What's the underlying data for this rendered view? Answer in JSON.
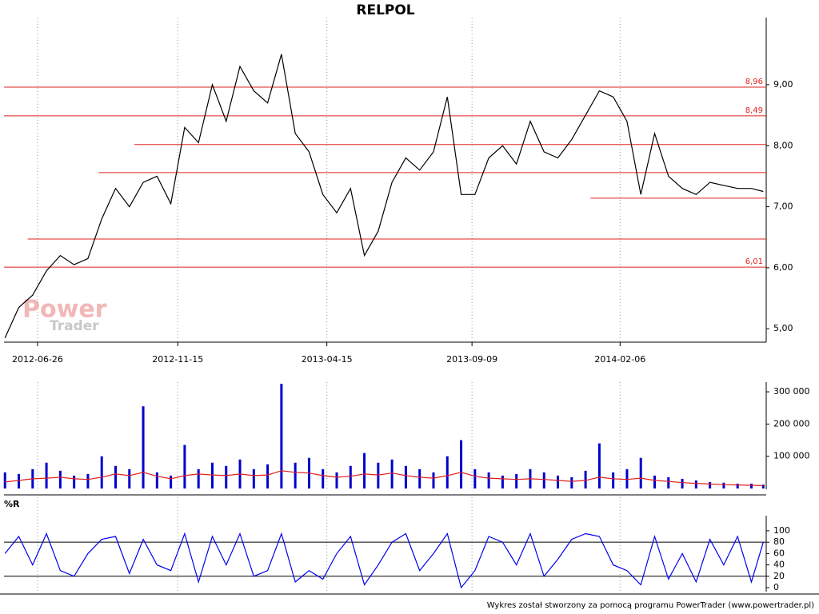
{
  "watermark": [
    "Power",
    "Trader"
  ],
  "footer": "Wykres został stworzony za pomocą programu PowerTrader (www.powertrader.pl)",
  "chart_data": [
    {
      "type": "line",
      "title": "RELPOL",
      "color": "#000000",
      "x": [
        "2012-05-24",
        "2012-06-07",
        "2012-06-21",
        "2012-07-05",
        "2012-07-19",
        "2012-08-02",
        "2012-08-16",
        "2012-08-30",
        "2012-09-13",
        "2012-09-27",
        "2012-10-11",
        "2012-10-25",
        "2012-11-08",
        "2012-11-22",
        "2012-12-06",
        "2012-12-20",
        "2013-01-03",
        "2013-01-17",
        "2013-01-31",
        "2013-02-14",
        "2013-02-28",
        "2013-03-14",
        "2013-03-28",
        "2013-04-11",
        "2013-04-25",
        "2013-05-09",
        "2013-05-23",
        "2013-06-06",
        "2013-06-20",
        "2013-07-04",
        "2013-07-18",
        "2013-08-01",
        "2013-08-15",
        "2013-08-29",
        "2013-09-12",
        "2013-09-26",
        "2013-10-10",
        "2013-10-24",
        "2013-11-07",
        "2013-11-21",
        "2013-12-05",
        "2013-12-19",
        "2014-01-02",
        "2014-01-16",
        "2014-01-30",
        "2014-02-13",
        "2014-02-27",
        "2014-03-13",
        "2014-03-27",
        "2014-04-10",
        "2014-04-24",
        "2014-05-08",
        "2014-05-22",
        "2014-06-05",
        "2014-06-19",
        "2014-07-01"
      ],
      "values": [
        4.85,
        5.35,
        5.55,
        5.95,
        6.2,
        6.05,
        6.15,
        6.8,
        7.3,
        7.0,
        7.4,
        7.5,
        7.05,
        8.3,
        8.05,
        9.0,
        8.4,
        9.3,
        8.9,
        8.7,
        9.5,
        8.2,
        7.9,
        7.2,
        6.9,
        7.3,
        6.2,
        6.6,
        7.4,
        7.8,
        7.6,
        7.9,
        8.8,
        7.2,
        7.2,
        7.8,
        8.0,
        7.7,
        8.4,
        7.9,
        7.8,
        8.1,
        8.5,
        8.9,
        8.8,
        8.4,
        7.2,
        8.2,
        7.5,
        7.3,
        7.2,
        7.4,
        7.35,
        7.3,
        7.3,
        7.25
      ],
      "xlim": [
        "2012-05-23",
        "2014-07-04"
      ],
      "xticks": [
        "2012-06-26",
        "2012-11-15",
        "2013-04-15",
        "2013-09-09",
        "2014-02-06"
      ],
      "ylim": [
        4.78,
        10.1
      ],
      "yticks": [
        {
          "value": 5,
          "label": "5,00"
        },
        {
          "value": 6,
          "label": "6,00"
        },
        {
          "value": 7,
          "label": "7,00"
        },
        {
          "value": 8,
          "label": "8,00"
        },
        {
          "value": 9,
          "label": "9,00"
        }
      ],
      "hline_color": "#e02020",
      "hlines": [
        {
          "value": 8.96,
          "label": "8,96"
        },
        {
          "value": 8.49,
          "label": "8,49"
        },
        {
          "value": 8.02,
          "from": "2012-10-02"
        },
        {
          "value": 7.56,
          "from": "2012-08-27"
        },
        {
          "value": 7.14,
          "from": "2014-01-07"
        },
        {
          "value": 6.47,
          "from": "2012-06-16"
        },
        {
          "value": 6.01,
          "label": "6,01"
        }
      ]
    },
    {
      "type": "bar",
      "color": "#0000cc",
      "x": [
        "2012-05-24",
        "2012-06-07",
        "2012-06-21",
        "2012-07-05",
        "2012-07-19",
        "2012-08-02",
        "2012-08-16",
        "2012-08-30",
        "2012-09-13",
        "2012-09-27",
        "2012-10-11",
        "2012-10-25",
        "2012-11-08",
        "2012-11-22",
        "2012-12-06",
        "2012-12-20",
        "2013-01-03",
        "2013-01-17",
        "2013-01-31",
        "2013-02-14",
        "2013-02-28",
        "2013-03-14",
        "2013-03-28",
        "2013-04-11",
        "2013-04-25",
        "2013-05-09",
        "2013-05-23",
        "2013-06-06",
        "2013-06-20",
        "2013-07-04",
        "2013-07-18",
        "2013-08-01",
        "2013-08-15",
        "2013-08-29",
        "2013-09-12",
        "2013-09-26",
        "2013-10-10",
        "2013-10-24",
        "2013-11-07",
        "2013-11-21",
        "2013-12-05",
        "2013-12-19",
        "2014-01-02",
        "2014-01-16",
        "2014-01-30",
        "2014-02-13",
        "2014-02-27",
        "2014-03-13",
        "2014-03-27",
        "2014-04-10",
        "2014-04-24",
        "2014-05-08",
        "2014-05-22",
        "2014-06-05",
        "2014-06-19",
        "2014-07-01"
      ],
      "values": [
        50000,
        45000,
        60000,
        80000,
        55000,
        40000,
        45000,
        100000,
        70000,
        60000,
        255000,
        50000,
        40000,
        135000,
        60000,
        80000,
        70000,
        90000,
        60000,
        75000,
        325000,
        80000,
        95000,
        60000,
        50000,
        70000,
        110000,
        80000,
        90000,
        70000,
        60000,
        50000,
        100000,
        150000,
        60000,
        50000,
        40000,
        45000,
        60000,
        50000,
        40000,
        35000,
        55000,
        140000,
        50000,
        60000,
        95000,
        40000,
        35000,
        30000,
        25000,
        20000,
        18000,
        15000,
        15000,
        12000
      ],
      "ma_color": "#e02020",
      "ma": [
        20000,
        25000,
        30000,
        32000,
        35000,
        30000,
        28000,
        35000,
        45000,
        40000,
        50000,
        38000,
        30000,
        40000,
        45000,
        42000,
        40000,
        45000,
        40000,
        42000,
        55000,
        50000,
        48000,
        40000,
        35000,
        38000,
        45000,
        42000,
        48000,
        40000,
        35000,
        32000,
        40000,
        50000,
        38000,
        32000,
        30000,
        28000,
        30000,
        28000,
        25000,
        22000,
        25000,
        35000,
        30000,
        28000,
        32000,
        25000,
        22000,
        18000,
        16000,
        14000,
        12000,
        11000,
        10000,
        9000
      ],
      "xlim": [
        "2012-05-23",
        "2014-07-04"
      ],
      "ylim": [
        0,
        330000
      ],
      "yticks": [
        {
          "value": 100000,
          "label": "100 000"
        },
        {
          "value": 200000,
          "label": "200 000"
        },
        {
          "value": 300000,
          "label": "300 000"
        }
      ]
    },
    {
      "type": "line",
      "title": "%R",
      "color": "#0000ee",
      "x": [
        "2012-05-24",
        "2012-06-07",
        "2012-06-21",
        "2012-07-05",
        "2012-07-19",
        "2012-08-02",
        "2012-08-16",
        "2012-08-30",
        "2012-09-13",
        "2012-09-27",
        "2012-10-11",
        "2012-10-25",
        "2012-11-08",
        "2012-11-22",
        "2012-12-06",
        "2012-12-20",
        "2013-01-03",
        "2013-01-17",
        "2013-01-31",
        "2013-02-14",
        "2013-02-28",
        "2013-03-14",
        "2013-03-28",
        "2013-04-11",
        "2013-04-25",
        "2013-05-09",
        "2013-05-23",
        "2013-06-06",
        "2013-06-20",
        "2013-07-04",
        "2013-07-18",
        "2013-08-01",
        "2013-08-15",
        "2013-08-29",
        "2013-09-12",
        "2013-09-26",
        "2013-10-10",
        "2013-10-24",
        "2013-11-07",
        "2013-11-21",
        "2013-12-05",
        "2013-12-19",
        "2014-01-02",
        "2014-01-16",
        "2014-01-30",
        "2014-02-13",
        "2014-02-27",
        "2014-03-13",
        "2014-03-27",
        "2014-04-10",
        "2014-04-24",
        "2014-05-08",
        "2014-05-22",
        "2014-06-05",
        "2014-06-19",
        "2014-07-01"
      ],
      "values": [
        60,
        90,
        40,
        95,
        30,
        20,
        60,
        85,
        90,
        25,
        85,
        40,
        30,
        95,
        10,
        90,
        40,
        95,
        20,
        30,
        95,
        10,
        30,
        15,
        60,
        90,
        5,
        40,
        80,
        95,
        30,
        60,
        95,
        0,
        30,
        90,
        80,
        40,
        95,
        20,
        50,
        85,
        95,
        90,
        40,
        30,
        5,
        90,
        15,
        60,
        10,
        85,
        40,
        90,
        10,
        80
      ],
      "xlim": [
        "2012-05-23",
        "2014-07-04"
      ],
      "ylim": [
        -7,
        159
      ],
      "yticks": [
        0,
        20,
        40,
        60,
        80,
        100
      ],
      "hline_color": "#000000",
      "hlines": [
        {
          "value": 20
        },
        {
          "value": 80
        }
      ]
    }
  ]
}
